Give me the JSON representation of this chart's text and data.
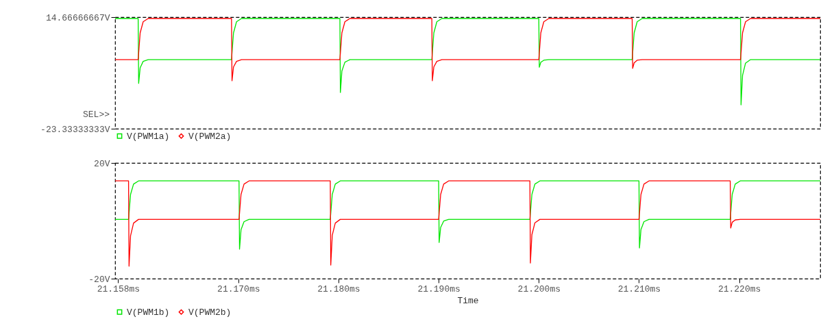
{
  "chart_data": [
    {
      "type": "line",
      "annotations": [
        "SEL>>"
      ],
      "xlim": [
        21.1577,
        21.2281
      ],
      "ylim": [
        -23.33333333,
        14.66666667
      ],
      "yticks": [
        {
          "value": 14.66666667,
          "label": "14.66666667V"
        },
        {
          "value": -23.33333333,
          "label": "-23.33333333V"
        }
      ],
      "tick_labels": "y",
      "legend": "bottom",
      "series": [
        {
          "name": "V(PWM1a)",
          "color": "#00e600",
          "x": [
            21.1577,
            21.16,
            21.16005,
            21.1602,
            21.1605,
            21.161,
            21.16932,
            21.16952,
            21.16982,
            21.17032,
            21.18014,
            21.18019,
            21.18034,
            21.18064,
            21.18114,
            21.18932,
            21.18952,
            21.18982,
            21.19032,
            21.2,
            21.20005,
            21.2002,
            21.2005,
            21.201,
            21.20932,
            21.20952,
            21.20982,
            21.21032,
            21.22014,
            21.22019,
            21.22034,
            21.22064,
            21.22114,
            21.2281
          ],
          "values": [
            14.2,
            14.2,
            -7.9,
            -2.6,
            -0.4,
            0.2,
            0.2,
            9.3,
            13.1,
            14.2,
            14.2,
            -11.0,
            -3.7,
            -0.7,
            0.2,
            0.2,
            9.3,
            13.1,
            14.2,
            14.2,
            -2.4,
            -0.7,
            0,
            0.2,
            0.2,
            9.3,
            13.1,
            14.2,
            14.2,
            -15.2,
            -5.2,
            -1.0,
            0.2,
            0.2
          ]
        },
        {
          "name": "V(PWM2a)",
          "color": "#ff0000",
          "x": [
            21.1577,
            21.16,
            21.1602,
            21.1605,
            21.161,
            21.16932,
            21.16937,
            21.16952,
            21.16982,
            21.17032,
            21.18014,
            21.18034,
            21.18064,
            21.18114,
            21.18932,
            21.18937,
            21.18952,
            21.18982,
            21.19032,
            21.2,
            21.2002,
            21.2005,
            21.201,
            21.20932,
            21.20937,
            21.20952,
            21.20982,
            21.21032,
            21.22014,
            21.22034,
            21.22064,
            21.22114,
            21.2281
          ],
          "values": [
            0.2,
            0.2,
            9.3,
            13.1,
            14.2,
            14.2,
            -7.0,
            -2.3,
            -0.4,
            0.2,
            0.2,
            9.3,
            13.1,
            14.2,
            14.2,
            -7.0,
            -2.3,
            -0.4,
            0.2,
            0.2,
            9.3,
            13.1,
            14.2,
            14.2,
            -2.8,
            -0.9,
            0.0,
            0.2,
            0.2,
            9.3,
            13.1,
            14.2,
            14.2
          ]
        }
      ]
    },
    {
      "type": "line",
      "xlabel": "Time",
      "xlim": [
        21.1577,
        21.2281
      ],
      "xticks": [
        {
          "value": 21.158,
          "label": "21.158ms"
        },
        {
          "value": 21.17,
          "label": "21.170ms"
        },
        {
          "value": 21.18,
          "label": "21.180ms"
        },
        {
          "value": 21.19,
          "label": "21.190ms"
        },
        {
          "value": 21.2,
          "label": "21.200ms"
        },
        {
          "value": 21.21,
          "label": "21.210ms"
        },
        {
          "value": 21.22,
          "label": "21.220ms"
        }
      ],
      "ylim": [
        -20,
        20
      ],
      "yticks": [
        {
          "value": 20,
          "label": "20V"
        },
        {
          "value": -20,
          "label": "-20V"
        }
      ],
      "legend": "bottom",
      "series": [
        {
          "name": "V(PWM1b)",
          "color": "#00e600",
          "x": [
            21.1577,
            21.15904,
            21.15924,
            21.15954,
            21.16004,
            21.17007,
            21.17012,
            21.17027,
            21.17057,
            21.17107,
            21.17918,
            21.17938,
            21.17968,
            21.18018,
            21.19,
            21.19005,
            21.1902,
            21.1905,
            21.191,
            21.19911,
            21.19931,
            21.19961,
            21.20011,
            21.21,
            21.21005,
            21.2102,
            21.2105,
            21.211,
            21.21911,
            21.21931,
            21.21961,
            21.22011,
            21.2281
          ],
          "values": [
            0.5,
            0.5,
            9.1,
            12.7,
            13.8,
            13.8,
            -9.8,
            -3.1,
            -0.3,
            0.5,
            0.5,
            9.1,
            12.7,
            13.8,
            13.8,
            -7.5,
            -2.3,
            -0.1,
            0.5,
            0.5,
            9.1,
            12.7,
            13.8,
            13.8,
            -9.4,
            -3.0,
            -0.3,
            0.5,
            0.5,
            9.1,
            12.7,
            13.8,
            13.8
          ]
        },
        {
          "name": "V(PWM2b)",
          "color": "#ff0000",
          "x": [
            21.1577,
            21.15904,
            21.15909,
            21.15924,
            21.15954,
            21.16004,
            21.17007,
            21.17027,
            21.17057,
            21.17107,
            21.17918,
            21.17923,
            21.17938,
            21.17968,
            21.18018,
            21.19,
            21.1902,
            21.1905,
            21.191,
            21.19911,
            21.19916,
            21.19931,
            21.19961,
            21.20011,
            21.21,
            21.2102,
            21.2105,
            21.211,
            21.21911,
            21.21916,
            21.21931,
            21.21961,
            21.22011,
            21.2281
          ],
          "values": [
            13.8,
            13.8,
            -15.7,
            -5.2,
            -0.8,
            0.5,
            0.5,
            9.1,
            12.7,
            13.8,
            13.8,
            -15.3,
            -5.0,
            -0.8,
            0.5,
            0.5,
            9.1,
            12.7,
            13.8,
            13.8,
            -14.6,
            -4.8,
            -0.7,
            0.5,
            0.5,
            9.1,
            12.7,
            13.8,
            13.8,
            -2.5,
            -0.5,
            0.3,
            0.5,
            0.5
          ]
        }
      ]
    }
  ]
}
